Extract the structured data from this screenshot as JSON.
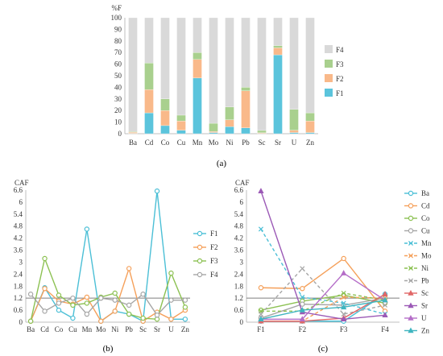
{
  "chart_data": [
    {
      "panel": "(a)",
      "type": "bar",
      "stacked": true,
      "ylabel": "%F",
      "ylim": [
        0,
        100
      ],
      "yticks": [
        0,
        10,
        20,
        30,
        40,
        50,
        60,
        70,
        80,
        90,
        100
      ],
      "categories": [
        "Ba",
        "Cd",
        "Co",
        "Cu",
        "Mn",
        "Mo",
        "Ni",
        "Pb",
        "Sc",
        "Sr",
        "U",
        "Zn"
      ],
      "legend_position": "right",
      "series": [
        {
          "name": "F1",
          "color": "#5bc4dc",
          "values": [
            0.3,
            18,
            7,
            3,
            48,
            1,
            6,
            5,
            0.3,
            68,
            1,
            1
          ]
        },
        {
          "name": "F2",
          "color": "#f9b98a",
          "values": [
            1,
            20,
            13,
            8,
            16,
            1,
            6,
            32,
            0.5,
            6,
            2,
            10
          ]
        },
        {
          "name": "F3",
          "color": "#a9d08e",
          "values": [
            0.5,
            23,
            10,
            5,
            6,
            7,
            11,
            3,
            2,
            2,
            18,
            7
          ]
        },
        {
          "name": "F4",
          "color": "#d9d9d9",
          "values": [
            98.2,
            39,
            70,
            84,
            30,
            91,
            77,
            60,
            97.2,
            24,
            79,
            82
          ]
        }
      ],
      "legend_order": [
        "F4",
        "F3",
        "F2",
        "F1"
      ]
    },
    {
      "panel": "(b)",
      "type": "line",
      "ylabel": "CAF",
      "ylim": [
        0,
        6.6
      ],
      "yticks": [
        0,
        0.6,
        1.2,
        1.8,
        2.4,
        3.0,
        3.6,
        4.2,
        4.8,
        5.4,
        6.0,
        6.6
      ],
      "ytick_labels": [
        "0",
        "0.6",
        "1.2",
        "1.8",
        "2.4",
        "3",
        "3.6",
        "4.2",
        "4.8",
        "5.4",
        "6",
        "6.6"
      ],
      "categories": [
        "Ba",
        "Cd",
        "Co",
        "Cu",
        "Mn",
        "Mo",
        "Ni",
        "Pb",
        "Sc",
        "Sr",
        "U",
        "Zn"
      ],
      "reference_line": 1.2,
      "legend_position": "right",
      "series": [
        {
          "name": "F1",
          "color": "#4bbfd6",
          "marker": "circle",
          "values": [
            0.05,
            1.72,
            0.6,
            0.2,
            4.65,
            0.05,
            0.55,
            0.4,
            0.05,
            6.55,
            0.15,
            0.15
          ]
        },
        {
          "name": "F2",
          "color": "#f5a05a",
          "marker": "circle",
          "values": [
            0.05,
            1.68,
            1.05,
            0.9,
            1.25,
            0.05,
            0.55,
            2.68,
            0.05,
            0.5,
            0.15,
            0.6
          ]
        },
        {
          "name": "F3",
          "color": "#8cc152",
          "marker": "circle",
          "values": [
            0.05,
            3.18,
            1.35,
            0.85,
            0.95,
            1.25,
            1.45,
            0.4,
            0.2,
            0.15,
            2.45,
            0.75
          ]
        },
        {
          "name": "F4",
          "color": "#a6a6a6",
          "marker": "circle",
          "values": [
            1.4,
            0.55,
            0.95,
            1.2,
            0.4,
            1.2,
            1.1,
            0.85,
            1.4,
            0.35,
            1.1,
            1.1
          ]
        }
      ]
    },
    {
      "panel": "(c)",
      "type": "line",
      "ylabel": "CAF",
      "ylim": [
        0,
        6.6
      ],
      "yticks": [
        0,
        0.6,
        1.2,
        1.8,
        2.4,
        3.0,
        3.6,
        4.2,
        4.8,
        5.4,
        6.0,
        6.6
      ],
      "ytick_labels": [
        "0",
        "0.6",
        "1.2",
        "1.8",
        "2.4",
        "3",
        "3.6",
        "4.2",
        "4.8",
        "5.4",
        "6",
        "6.6"
      ],
      "categories": [
        "F1",
        "F2",
        "F3",
        "F4"
      ],
      "reference_line": 1.2,
      "legend_position": "right",
      "series": [
        {
          "name": "Ba",
          "color": "#4bbfd6",
          "marker": "circle",
          "dash": false,
          "values": [
            0.05,
            0.05,
            0.05,
            1.4
          ]
        },
        {
          "name": "Cd",
          "color": "#f5a05a",
          "marker": "circle",
          "dash": false,
          "values": [
            1.72,
            1.68,
            3.18,
            0.55
          ]
        },
        {
          "name": "Co",
          "color": "#8cc152",
          "marker": "circle",
          "dash": false,
          "values": [
            0.6,
            1.05,
            1.35,
            0.95
          ]
        },
        {
          "name": "Cu",
          "color": "#a6a6a6",
          "marker": "circle",
          "dash": false,
          "values": [
            0.2,
            0.9,
            0.85,
            1.2
          ]
        },
        {
          "name": "Mn",
          "color": "#4bbfd6",
          "marker": "x",
          "dash": true,
          "values": [
            4.65,
            1.25,
            0.95,
            0.4
          ]
        },
        {
          "name": "Mo",
          "color": "#f5a05a",
          "marker": "x",
          "dash": true,
          "values": [
            0.05,
            0.05,
            1.25,
            1.2
          ]
        },
        {
          "name": "Ni",
          "color": "#8cc152",
          "marker": "x",
          "dash": true,
          "values": [
            0.55,
            0.55,
            1.45,
            1.1
          ]
        },
        {
          "name": "Pb",
          "color": "#a6a6a6",
          "marker": "x",
          "dash": true,
          "values": [
            0.4,
            2.68,
            0.4,
            0.85
          ]
        },
        {
          "name": "Sc",
          "color": "#e06666",
          "marker": "triangle",
          "dash": false,
          "values": [
            0.05,
            0.05,
            0.2,
            1.4
          ]
        },
        {
          "name": "Sr",
          "color": "#9b59b6",
          "marker": "triangle",
          "dash": false,
          "values": [
            6.55,
            0.5,
            0.15,
            0.35
          ]
        },
        {
          "name": "U",
          "color": "#b56ec8",
          "marker": "triangle",
          "dash": false,
          "values": [
            0.15,
            0.15,
            2.45,
            1.1
          ]
        },
        {
          "name": "Zn",
          "color": "#3fb5c0",
          "marker": "triangle",
          "dash": false,
          "values": [
            0.15,
            0.6,
            0.75,
            1.1
          ]
        }
      ]
    }
  ]
}
